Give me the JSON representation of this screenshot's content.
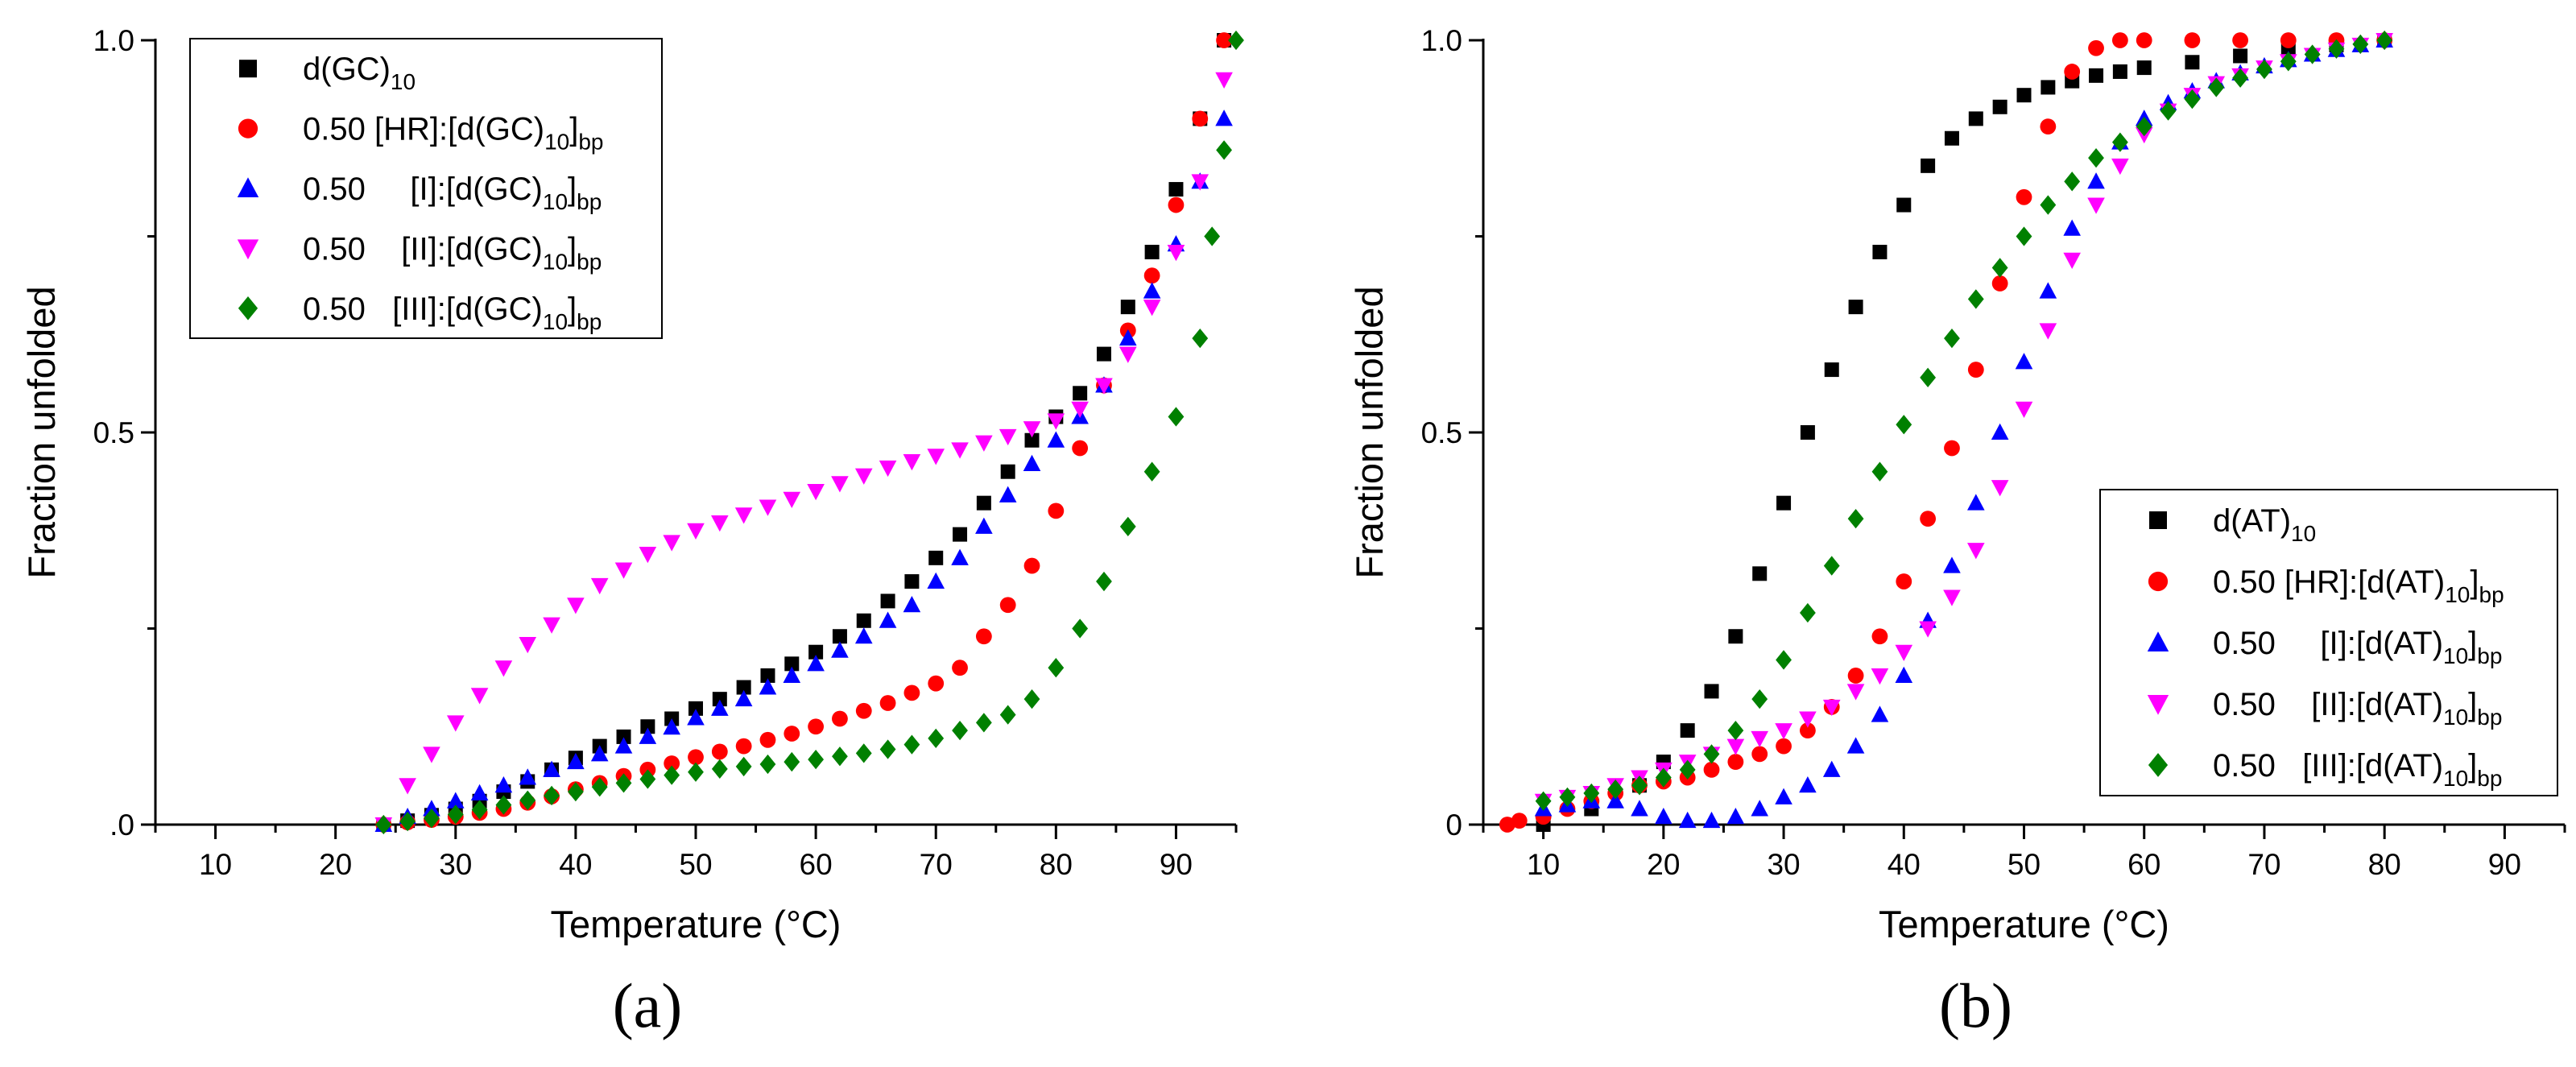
{
  "chart_data": [
    {
      "type": "scatter",
      "panel_label": "(a)",
      "xlabel": "Temperature (°C)",
      "ylabel": "Fraction unfolded",
      "xlim": [
        5,
        95
      ],
      "ylim": [
        0,
        1
      ],
      "xticks": [
        "10",
        "20",
        "30",
        "40",
        "50",
        "60",
        "70",
        "80",
        "90"
      ],
      "yticks": [
        ".0",
        "0.5",
        "1.0"
      ],
      "legend_position": "top-left",
      "legend": [
        {
          "prefix": "d(GC)",
          "sub1": "10",
          "suffix": "",
          "sub2": ""
        },
        {
          "prefix": "0.50 [HR]:[d(GC)",
          "sub1": "10",
          "suffix": "]",
          "sub2": "bp"
        },
        {
          "prefix": "0.50     [I]:[d(GC)",
          "sub1": "10",
          "suffix": "]",
          "sub2": "bp"
        },
        {
          "prefix": "0.50    [II]:[d(GC)",
          "sub1": "10",
          "suffix": "]",
          "sub2": "bp"
        },
        {
          "prefix": "0.50   [III]:[d(GC)",
          "sub1": "10",
          "suffix": "]",
          "sub2": "bp"
        }
      ],
      "series": [
        {
          "name": "d(GC)10",
          "color": "#000000",
          "marker": "square",
          "x": [
            24,
            26,
            28,
            30,
            32,
            34,
            36,
            38,
            40,
            42,
            44,
            46,
            48,
            50,
            52,
            54,
            56,
            58,
            60,
            62,
            64,
            66,
            68,
            70,
            72,
            74,
            76,
            78,
            80,
            82,
            84,
            86,
            88,
            90,
            92,
            94
          ],
          "y": [
            0,
            0.005,
            0.012,
            0.02,
            0.03,
            0.042,
            0.055,
            0.07,
            0.085,
            0.1,
            0.112,
            0.125,
            0.135,
            0.148,
            0.16,
            0.175,
            0.19,
            0.205,
            0.22,
            0.24,
            0.26,
            0.285,
            0.31,
            0.34,
            0.37,
            0.41,
            0.45,
            0.49,
            0.52,
            0.55,
            0.6,
            0.66,
            0.73,
            0.81,
            0.9,
            1.0
          ]
        },
        {
          "name": "0.50 [HR]:[d(GC)10]bp",
          "color": "#ff0000",
          "marker": "circle",
          "x": [
            24,
            26,
            28,
            30,
            32,
            34,
            36,
            38,
            40,
            42,
            44,
            46,
            48,
            50,
            52,
            54,
            56,
            58,
            60,
            62,
            64,
            66,
            68,
            70,
            72,
            74,
            76,
            78,
            80,
            82,
            84,
            86,
            88,
            90,
            92,
            94
          ],
          "y": [
            0,
            0.003,
            0.006,
            0.01,
            0.015,
            0.02,
            0.028,
            0.036,
            0.045,
            0.053,
            0.062,
            0.07,
            0.078,
            0.086,
            0.093,
            0.1,
            0.108,
            0.116,
            0.125,
            0.135,
            0.145,
            0.155,
            0.168,
            0.18,
            0.2,
            0.24,
            0.28,
            0.33,
            0.4,
            0.48,
            0.56,
            0.63,
            0.7,
            0.79,
            0.9,
            1.0
          ]
        },
        {
          "name": "0.50 [I]:[d(GC)10]bp",
          "color": "#0000ff",
          "marker": "triangle-up",
          "x": [
            24,
            26,
            28,
            30,
            32,
            34,
            36,
            38,
            40,
            42,
            44,
            46,
            48,
            50,
            52,
            54,
            56,
            58,
            60,
            62,
            64,
            66,
            68,
            70,
            72,
            74,
            76,
            78,
            80,
            82,
            84,
            86,
            88,
            90,
            92,
            94
          ],
          "y": [
            0,
            0.01,
            0.02,
            0.03,
            0.04,
            0.05,
            0.06,
            0.07,
            0.08,
            0.09,
            0.1,
            0.112,
            0.124,
            0.136,
            0.148,
            0.16,
            0.175,
            0.19,
            0.205,
            0.222,
            0.24,
            0.26,
            0.28,
            0.31,
            0.34,
            0.38,
            0.42,
            0.46,
            0.49,
            0.52,
            0.56,
            0.62,
            0.68,
            0.74,
            0.82,
            0.9
          ]
        },
        {
          "name": "0.50 [II]:[d(GC)10]bp",
          "color": "#ff00ff",
          "marker": "triangle-down",
          "x": [
            24,
            26,
            28,
            30,
            32,
            34,
            36,
            38,
            40,
            42,
            44,
            46,
            48,
            50,
            52,
            54,
            56,
            58,
            60,
            62,
            64,
            66,
            68,
            70,
            72,
            74,
            76,
            78,
            80,
            82,
            84,
            86,
            88,
            90,
            92,
            94
          ],
          "y": [
            0,
            0.05,
            0.09,
            0.13,
            0.165,
            0.2,
            0.23,
            0.255,
            0.28,
            0.305,
            0.325,
            0.345,
            0.36,
            0.375,
            0.385,
            0.395,
            0.405,
            0.415,
            0.425,
            0.435,
            0.445,
            0.455,
            0.463,
            0.47,
            0.478,
            0.487,
            0.495,
            0.505,
            0.515,
            0.53,
            0.56,
            0.6,
            0.66,
            0.73,
            0.82,
            0.95
          ]
        },
        {
          "name": "0.50 [III]:[d(GC)10]bp",
          "color": "#008000",
          "marker": "diamond",
          "x": [
            24,
            26,
            28,
            30,
            32,
            34,
            36,
            38,
            40,
            42,
            44,
            46,
            48,
            50,
            52,
            54,
            56,
            58,
            60,
            62,
            64,
            66,
            68,
            70,
            72,
            74,
            76,
            78,
            80,
            82,
            84,
            86,
            88,
            90,
            92,
            93,
            94,
            95
          ],
          "y": [
            0,
            0.004,
            0.008,
            0.013,
            0.019,
            0.025,
            0.031,
            0.037,
            0.042,
            0.048,
            0.053,
            0.058,
            0.063,
            0.067,
            0.071,
            0.074,
            0.077,
            0.08,
            0.083,
            0.087,
            0.091,
            0.096,
            0.102,
            0.11,
            0.12,
            0.13,
            0.14,
            0.16,
            0.2,
            0.25,
            0.31,
            0.38,
            0.45,
            0.52,
            0.62,
            0.75,
            0.86,
            1.0
          ]
        }
      ]
    },
    {
      "type": "scatter",
      "panel_label": "(b)",
      "xlabel": "Temperature (°C)",
      "ylabel": "Fraction unfolded",
      "xlim": [
        5,
        95
      ],
      "ylim": [
        0,
        1
      ],
      "xticks": [
        "10",
        "20",
        "30",
        "40",
        "50",
        "60",
        "70",
        "80",
        "90"
      ],
      "yticks": [
        "0",
        "0.5",
        "1.0"
      ],
      "legend_position": "bottom-right",
      "legend": [
        {
          "prefix": "d(AT)",
          "sub1": "10",
          "suffix": "",
          "sub2": ""
        },
        {
          "prefix": "0.50 [HR]:[d(AT)",
          "sub1": "10",
          "suffix": "]",
          "sub2": "bp"
        },
        {
          "prefix": "0.50     [I]:[d(AT)",
          "sub1": "10",
          "suffix": "]",
          "sub2": "bp"
        },
        {
          "prefix": "0.50    [II]:[d(AT)",
          "sub1": "10",
          "suffix": "]",
          "sub2": "bp"
        },
        {
          "prefix": "0.50   [III]:[d(AT)",
          "sub1": "10",
          "suffix": "]",
          "sub2": "bp"
        }
      ],
      "series": [
        {
          "name": "d(AT)10",
          "color": "#000000",
          "marker": "square",
          "x": [
            10,
            14,
            18,
            20,
            22,
            24,
            26,
            28,
            30,
            32,
            34,
            36,
            38,
            40,
            42,
            44,
            46,
            48,
            50,
            52,
            54,
            56,
            58,
            60,
            64,
            68,
            72,
            76,
            80
          ],
          "y": [
            0,
            0.02,
            0.05,
            0.08,
            0.12,
            0.17,
            0.24,
            0.32,
            0.41,
            0.5,
            0.58,
            0.66,
            0.73,
            0.79,
            0.84,
            0.875,
            0.9,
            0.915,
            0.93,
            0.94,
            0.948,
            0.955,
            0.96,
            0.965,
            0.972,
            0.98,
            0.988,
            0.994,
            1.0
          ]
        },
        {
          "name": "0.50 [HR]:[d(AT)10]bp",
          "color": "#ff0000",
          "marker": "circle",
          "x": [
            7,
            8,
            10,
            12,
            14,
            16,
            18,
            20,
            22,
            24,
            26,
            28,
            30,
            32,
            34,
            36,
            38,
            40,
            42,
            44,
            46,
            48,
            50,
            52,
            54,
            56,
            58,
            60,
            64,
            68,
            72,
            76,
            80
          ],
          "y": [
            0,
            0.005,
            0.01,
            0.02,
            0.03,
            0.04,
            0.05,
            0.055,
            0.06,
            0.07,
            0.08,
            0.09,
            0.1,
            0.12,
            0.15,
            0.19,
            0.24,
            0.31,
            0.39,
            0.48,
            0.58,
            0.69,
            0.8,
            0.89,
            0.96,
            0.99,
            1.0,
            1.0,
            1.0,
            1.0,
            1.0,
            1.0,
            1.0
          ]
        },
        {
          "name": "0.50 [I]:[d(AT)10]bp",
          "color": "#0000ff",
          "marker": "triangle-up",
          "x": [
            10,
            12,
            14,
            16,
            18,
            20,
            22,
            24,
            26,
            28,
            30,
            32,
            34,
            36,
            38,
            40,
            42,
            44,
            46,
            48,
            50,
            52,
            54,
            56,
            58,
            60,
            62,
            64,
            66,
            68,
            70,
            72,
            74,
            76,
            78,
            80
          ],
          "y": [
            0.02,
            0.025,
            0.03,
            0.03,
            0.02,
            0.01,
            0.005,
            0.005,
            0.01,
            0.02,
            0.035,
            0.05,
            0.07,
            0.1,
            0.14,
            0.19,
            0.26,
            0.33,
            0.41,
            0.5,
            0.59,
            0.68,
            0.76,
            0.82,
            0.87,
            0.9,
            0.92,
            0.935,
            0.948,
            0.958,
            0.967,
            0.975,
            0.982,
            0.988,
            0.994,
            1.0
          ]
        },
        {
          "name": "0.50 [II]:[d(AT)10]bp",
          "color": "#ff00ff",
          "marker": "triangle-down",
          "x": [
            10,
            12,
            14,
            16,
            18,
            20,
            22,
            24,
            26,
            28,
            30,
            32,
            34,
            36,
            38,
            40,
            42,
            44,
            46,
            48,
            50,
            52,
            54,
            56,
            58,
            60,
            62,
            64,
            66,
            68,
            70,
            72,
            74,
            76,
            78,
            80
          ],
          "y": [
            0.03,
            0.035,
            0.04,
            0.05,
            0.06,
            0.07,
            0.08,
            0.09,
            0.1,
            0.11,
            0.12,
            0.135,
            0.15,
            0.17,
            0.19,
            0.22,
            0.25,
            0.29,
            0.35,
            0.43,
            0.53,
            0.63,
            0.72,
            0.79,
            0.84,
            0.88,
            0.91,
            0.93,
            0.945,
            0.955,
            0.965,
            0.973,
            0.981,
            0.988,
            0.994,
            1.0
          ]
        },
        {
          "name": "0.50 [III]:[d(AT)10]bp",
          "color": "#008000",
          "marker": "diamond",
          "x": [
            10,
            12,
            14,
            16,
            18,
            20,
            22,
            24,
            26,
            28,
            30,
            32,
            34,
            36,
            38,
            40,
            42,
            44,
            46,
            48,
            50,
            52,
            54,
            56,
            58,
            60,
            62,
            64,
            66,
            68,
            70,
            72,
            74,
            76,
            78,
            80
          ],
          "y": [
            0.03,
            0.035,
            0.04,
            0.045,
            0.05,
            0.06,
            0.07,
            0.09,
            0.12,
            0.16,
            0.21,
            0.27,
            0.33,
            0.39,
            0.45,
            0.51,
            0.57,
            0.62,
            0.67,
            0.71,
            0.75,
            0.79,
            0.82,
            0.85,
            0.87,
            0.89,
            0.91,
            0.925,
            0.94,
            0.952,
            0.963,
            0.973,
            0.982,
            0.989,
            0.995,
            1.0
          ]
        }
      ]
    }
  ]
}
